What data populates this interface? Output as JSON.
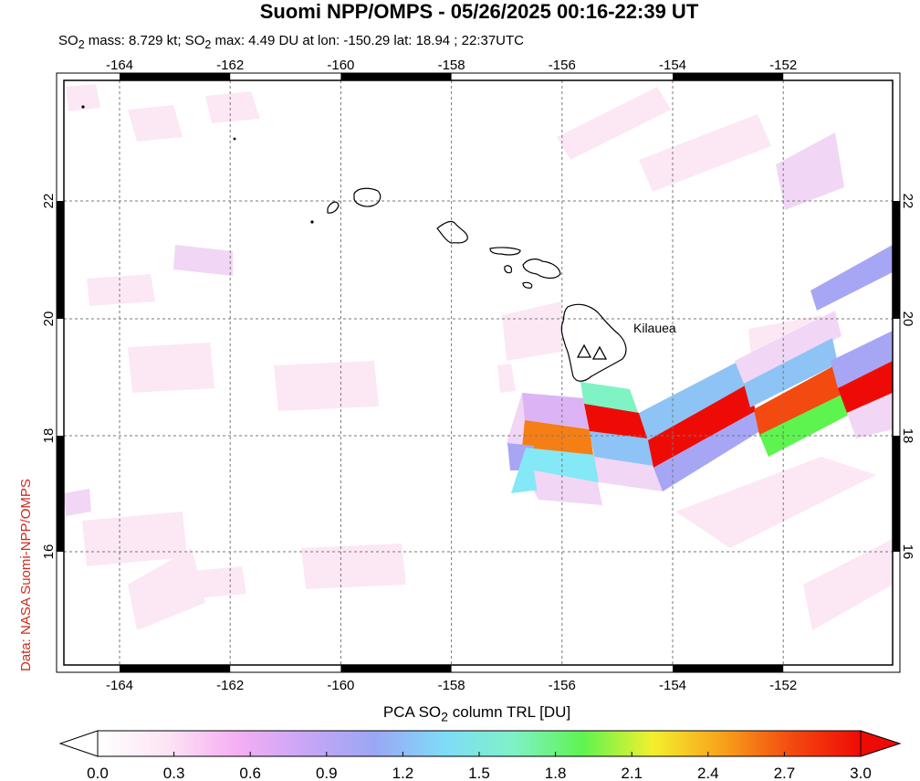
{
  "title": "Suomi NPP/OMPS - 05/26/2025 00:16-22:39 UT",
  "subtitle_parts": {
    "mass_pre": "SO",
    "mass_sub": "2",
    "mass_text": " mass: 8.729 kt; SO",
    "max_sub": "2",
    "max_text": " max: 4.49 DU at lon: -150.29 lat: 18.94 ; 22:37UTC"
  },
  "credit": "Data: NASA Suomi-NPP/OMPS",
  "volcano_label": "Kilauea",
  "colorbar": {
    "title_pre": "PCA SO",
    "title_sub": "2",
    "title_post": " column TRL [DU]",
    "ticks": [
      "0.0",
      "0.3",
      "0.6",
      "0.9",
      "1.2",
      "1.5",
      "1.8",
      "2.1",
      "2.4",
      "2.7",
      "3.0"
    ],
    "stops": [
      "#ffffff",
      "#fde4f4",
      "#f6aef4",
      "#c9a6f6",
      "#9aa7f4",
      "#7fdcf7",
      "#7ff1c7",
      "#5ef44f",
      "#f3f02e",
      "#f8a21a",
      "#f34a10",
      "#ef0b05"
    ]
  },
  "map": {
    "lon_range": [
      -165,
      -150
    ],
    "lat_range": [
      14,
      24
    ],
    "lon_ticks": [
      "-164",
      "-162",
      "-160",
      "-158",
      "-156",
      "-154",
      "-152"
    ],
    "lat_ticks": [
      "16",
      "18",
      "20",
      "22"
    ],
    "colors": {
      "red": "#ef0b05",
      "orange_red": "#f34a10",
      "orange": "#f57f14",
      "blue": "#8ec3f6",
      "periwinkle": "#a6a6f4",
      "cyan": "#84e8f6",
      "teal": "#7ff3c3",
      "green": "#5ef44f",
      "lavender": "#dcb4f6",
      "pink": "#f2d6f5",
      "light_pink": "#fbe8f4",
      "coast": "#000000"
    }
  }
}
